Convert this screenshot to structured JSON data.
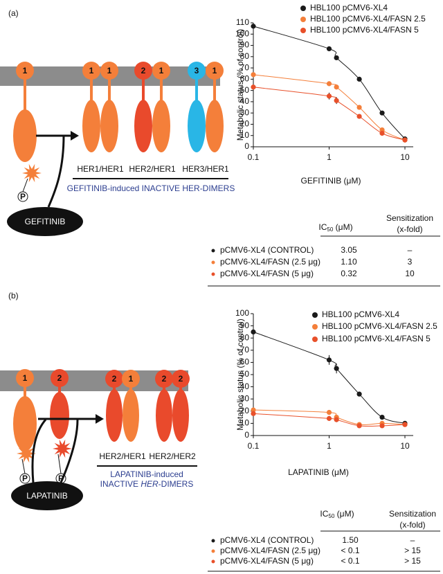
{
  "panels": [
    {
      "label": "(a)",
      "diagram": {
        "monomers": [
          "1"
        ],
        "dimers": [
          {
            "left": "1",
            "right": "1",
            "name": "HER1/HER1"
          },
          {
            "left": "2",
            "right": "1",
            "name": "HER2/HER1"
          },
          {
            "left": "3",
            "right": "1",
            "name": "HER3/HER1"
          }
        ],
        "caption": [
          [
            "GEFITINIB-induced INACTIVE HER-DIMERS"
          ]
        ],
        "drug": "GEFITINIB",
        "phospho": [
          "P"
        ]
      },
      "table": {
        "ic50_header": {
          "main": "IC",
          "sub": "50",
          "unit": " (μM)"
        },
        "sensitization_header": [
          "Sensitization",
          "(x-fold)"
        ],
        "rows": [
          [
            "pCMV6-XL4 (CONTROL)",
            "3.05",
            "–"
          ],
          [
            "pCMV6-XL4/FASN (2.5 μg)",
            "1.10",
            "3"
          ],
          [
            "pCMV6-XL4/FASN (5 μg)",
            "0.32",
            "10"
          ]
        ]
      }
    },
    {
      "label": "(b)",
      "diagram": {
        "monomers": [
          "1",
          "2"
        ],
        "dimers": [
          {
            "left": "2",
            "right": "1",
            "name": "HER2/HER1"
          },
          {
            "left": "2",
            "right": "2",
            "name": "HER2/HER2"
          }
        ],
        "caption": [
          [
            "LAPATINIB-induced"
          ],
          [
            "INACTIVE ",
            "HER",
            "-DIMERS"
          ]
        ],
        "drug": "LAPATINIB",
        "phospho": [
          "P",
          "P"
        ]
      },
      "table": {
        "ic50_header": {
          "main": "IC",
          "sub": "50",
          "unit": " (μM)"
        },
        "sensitization_header": [
          "Sensitization",
          "(x-fold)"
        ],
        "rows": [
          [
            "pCMV6-XL4 (CONTROL)",
            "1.50",
            "–"
          ],
          [
            "pCMV6-XL4/FASN (2.5 μg)",
            "< 0.1",
            "> 15"
          ],
          [
            "pCMV6-XL4/FASN (5 μg)",
            "< 0.1",
            "> 15"
          ]
        ]
      }
    }
  ],
  "chart_data": [
    {
      "type": "scatter",
      "x_label": "GEFITINIB (μM)",
      "y_label": "Metabolic status (% of control)",
      "xscale": "log",
      "xlim": [
        0.1,
        10
      ],
      "xticks": [
        0.1,
        1,
        10
      ],
      "ylim": [
        0,
        110
      ],
      "yticks": [
        0,
        10,
        20,
        30,
        40,
        50,
        60,
        70,
        80,
        90,
        100,
        110
      ],
      "legend": "top-right",
      "fit_curve": true,
      "x": [
        0.1,
        1,
        1.25,
        2.5,
        5,
        10
      ],
      "series": [
        {
          "name": "HBL100 pCMV6-XL4",
          "color": "#1a1a1a",
          "values": [
            107,
            87,
            79,
            60,
            30,
            7
          ],
          "errors": [
            3,
            1,
            1,
            1,
            1,
            1
          ]
        },
        {
          "name": "HBL100 pCMV6-XL4/FASN 2.5",
          "color": "#f47f3a",
          "values": [
            64,
            56,
            53,
            35,
            15,
            6
          ],
          "errors": [
            2,
            2,
            2,
            2,
            2,
            1
          ]
        },
        {
          "name": "HBL100 pCMV6-XL4/FASN 5",
          "color": "#e8502a",
          "values": [
            53,
            45,
            41,
            27,
            12,
            6
          ],
          "errors": [
            2,
            3,
            3,
            2,
            2,
            1
          ]
        }
      ]
    },
    {
      "type": "scatter",
      "x_label": "LAPATINIB (μM)",
      "y_label": "Metabolic status (% of control)",
      "xscale": "log",
      "xlim": [
        0.1,
        10
      ],
      "xticks": [
        0.1,
        1,
        10
      ],
      "ylim": [
        0,
        100
      ],
      "yticks": [
        0,
        10,
        20,
        30,
        40,
        50,
        60,
        70,
        80,
        90,
        100
      ],
      "legend": "top-right",
      "fit_curve": true,
      "x": [
        0.1,
        1,
        1.25,
        2.5,
        5,
        10
      ],
      "series": [
        {
          "name": "HBL100 pCMV6-XL4",
          "color": "#1a1a1a",
          "values": [
            85,
            62,
            55,
            34,
            15,
            10
          ],
          "errors": [
            4,
            4,
            4,
            1,
            1,
            1
          ]
        },
        {
          "name": "HBL100 pCMV6-XL4/FASN 2.5",
          "color": "#f47f3a",
          "values": [
            21,
            19,
            15,
            9,
            10,
            9
          ],
          "errors": [
            2,
            2,
            2,
            1,
            1,
            1
          ]
        },
        {
          "name": "HBL100 pCMV6-XL4/FASN 5",
          "color": "#e8502a",
          "values": [
            18,
            14,
            13,
            8,
            8,
            9
          ],
          "errors": [
            2,
            2,
            2,
            1,
            1,
            1
          ]
        }
      ]
    }
  ]
}
